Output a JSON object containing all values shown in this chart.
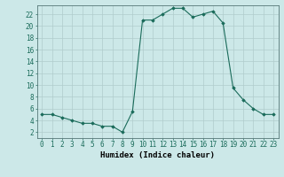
{
  "x": [
    0,
    1,
    2,
    3,
    4,
    5,
    6,
    7,
    8,
    9,
    10,
    11,
    12,
    13,
    14,
    15,
    16,
    17,
    18,
    19,
    20,
    21,
    22,
    23
  ],
  "y": [
    5,
    5,
    4.5,
    4,
    3.5,
    3.5,
    3,
    3,
    2,
    5.5,
    21,
    21,
    22,
    23,
    23,
    21.5,
    22,
    22.5,
    20.5,
    9.5,
    7.5,
    6,
    5,
    5
  ],
  "line_color": "#1a6b5a",
  "marker": "D",
  "marker_size": 1.8,
  "bg_color": "#cce8e8",
  "grid_color": "#b0cccc",
  "xlabel": "Humidex (Indice chaleur)",
  "xlabel_fontsize": 6.5,
  "xtick_labels": [
    "0",
    "1",
    "2",
    "3",
    "4",
    "5",
    "6",
    "7",
    "8",
    "9",
    "10",
    "11",
    "12",
    "13",
    "14",
    "15",
    "16",
    "17",
    "18",
    "19",
    "20",
    "21",
    "22",
    "23"
  ],
  "ytick_values": [
    2,
    4,
    6,
    8,
    10,
    12,
    14,
    16,
    18,
    20,
    22
  ],
  "ylim": [
    1.0,
    23.5
  ],
  "xlim": [
    -0.5,
    23.5
  ],
  "tick_fontsize": 5.5
}
